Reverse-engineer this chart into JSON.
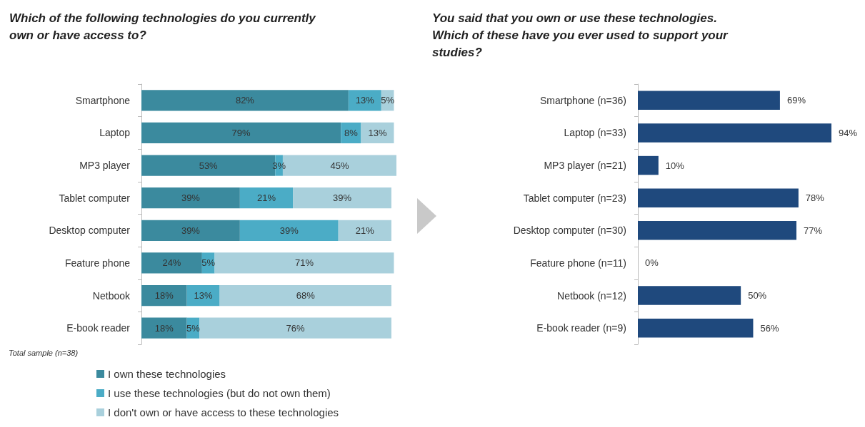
{
  "chart_data": [
    {
      "type": "bar",
      "orientation": "horizontal",
      "stacked": true,
      "title": "Which of the following technologies do you currently own or have access to?",
      "categories": [
        "Smartphone",
        "Laptop",
        "MP3 player",
        "Tablet computer",
        "Desktop computer",
        "Feature phone",
        "Netbook",
        "E-book reader"
      ],
      "tick_labels": "y",
      "legend": "bottom",
      "annotations": [
        "Total sample (n=38)"
      ],
      "series": [
        {
          "name": "I own these technologies",
          "color": "#3b8a9e",
          "values": [
            82,
            79,
            53,
            39,
            39,
            24,
            18,
            18
          ],
          "value_labels": [
            "82%",
            "79%",
            "53%",
            "39%",
            "39%",
            "24%",
            "18%",
            "18%"
          ]
        },
        {
          "name": "I use these technologies (but do not own them)",
          "color": "#4bacc6",
          "values": [
            13,
            8,
            3,
            21,
            39,
            5,
            13,
            5
          ],
          "value_labels": [
            "13%",
            "8%",
            "3%",
            "21%",
            "39%",
            "5%",
            "13%",
            "5%"
          ]
        },
        {
          "name": "I don't own or have access to these technologies",
          "color": "#a9d0dc",
          "values": [
            5,
            13,
            45,
            39,
            21,
            71,
            68,
            76
          ],
          "value_labels": [
            "5%",
            "13%",
            "45%",
            "39%",
            "21%",
            "71%",
            "68%",
            "76%"
          ]
        }
      ]
    },
    {
      "type": "bar",
      "orientation": "horizontal",
      "title": "You said that you own or use these technologies. Which of these have you ever used to support your studies?",
      "categories": [
        "Smartphone (n=36)",
        "Laptop (n=33)",
        "MP3 player (n=21)",
        "Tablet computer (n=23)",
        "Desktop computer (n=30)",
        "Feature phone (n=11)",
        "Netbook (n=12)",
        "E-book reader (n=9)"
      ],
      "tick_labels": "y",
      "legend": false,
      "series": [
        {
          "color": "#1f497d",
          "values": [
            69,
            94,
            10,
            78,
            77,
            0,
            50,
            56
          ],
          "value_labels": [
            "69%",
            "94%",
            "10%",
            "78%",
            "77%",
            "0%",
            "50%",
            "56%"
          ]
        }
      ]
    }
  ]
}
